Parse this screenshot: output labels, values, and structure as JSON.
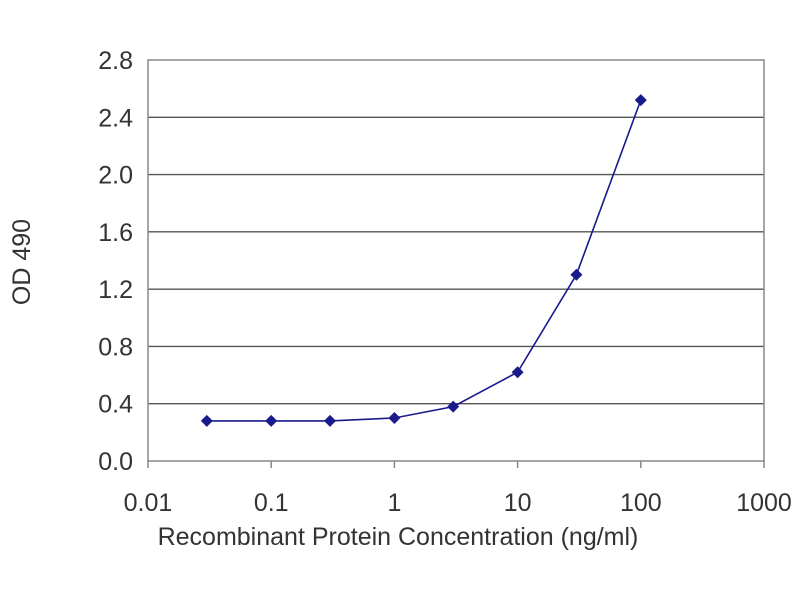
{
  "chart_data": {
    "type": "line",
    "title": "",
    "xlabel": "Recombinant Protein Concentration (ng/ml)",
    "ylabel": "OD 490",
    "x_scale": "log",
    "xlim": [
      0.01,
      1000
    ],
    "ylim": [
      0.0,
      2.8
    ],
    "x_ticks": [
      0.01,
      0.1,
      1,
      10,
      100,
      1000
    ],
    "x_tick_labels": [
      "0.01",
      "0.1",
      "1",
      "10",
      "100",
      "1000"
    ],
    "y_ticks": [
      0.0,
      0.4,
      0.8,
      1.2,
      1.6,
      2.0,
      2.4,
      2.8
    ],
    "y_tick_labels": [
      "0.0",
      "0.4",
      "0.8",
      "1.2",
      "1.6",
      "2.0",
      "2.4",
      "2.8"
    ],
    "grid": "horizontal",
    "legend": "none",
    "colors": {
      "series": "#1a1a8c",
      "grid": "#555555",
      "axis": "#888888"
    },
    "series": [
      {
        "x": [
          0.03,
          0.1,
          0.3,
          1,
          3,
          10,
          30,
          100
        ],
        "y": [
          0.28,
          0.28,
          0.28,
          0.3,
          0.38,
          0.62,
          1.3,
          2.52
        ]
      }
    ]
  }
}
